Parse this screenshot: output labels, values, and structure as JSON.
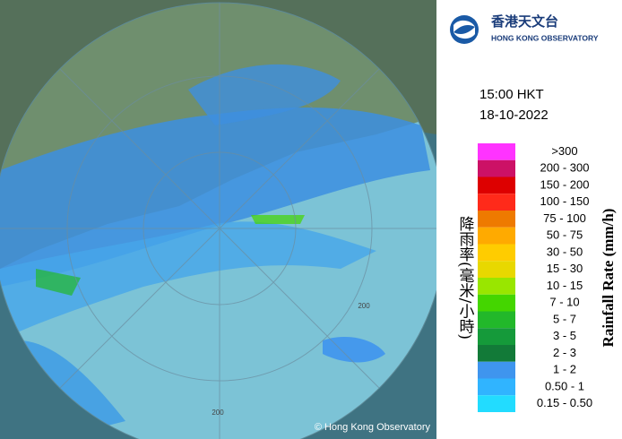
{
  "logo": {
    "name_zh": "香港天文台",
    "name_en": "HONG KONG OBSERVATORY"
  },
  "time": "15:00 HKT",
  "date": "18-10-2022",
  "map": {
    "ring_labels": [
      "200",
      "200"
    ],
    "copyright": "© Hong Kong Observatory"
  },
  "legend": {
    "title_zh": "降雨率(毫米/小時)",
    "title_en": "Rainfall Rate (mm/h)",
    "items": [
      {
        "label": ">300",
        "color": "#ff33ff"
      },
      {
        "label": "200 - 300",
        "color": "#cc1166"
      },
      {
        "label": "150 - 200",
        "color": "#dd0000"
      },
      {
        "label": "100 - 150",
        "color": "#ff2a1a"
      },
      {
        "label": "75 - 100",
        "color": "#ee7a00"
      },
      {
        "label": "50 - 75",
        "color": "#ffaa00"
      },
      {
        "label": "30 - 50",
        "color": "#ffcc00"
      },
      {
        "label": "15 - 30",
        "color": "#e8d800"
      },
      {
        "label": "10 - 15",
        "color": "#99e600"
      },
      {
        "label": "7 - 10",
        "color": "#44d600"
      },
      {
        "label": "5 - 7",
        "color": "#22b82a"
      },
      {
        "label": "3 - 5",
        "color": "#159a3a"
      },
      {
        "label": "2 - 3",
        "color": "#127a38"
      },
      {
        "label": "1 - 2",
        "color": "#3f95ee"
      },
      {
        "label": "0.50 - 1",
        "color": "#30b4ff"
      },
      {
        "label": "0.15 - 0.50",
        "color": "#22dcff"
      }
    ]
  }
}
